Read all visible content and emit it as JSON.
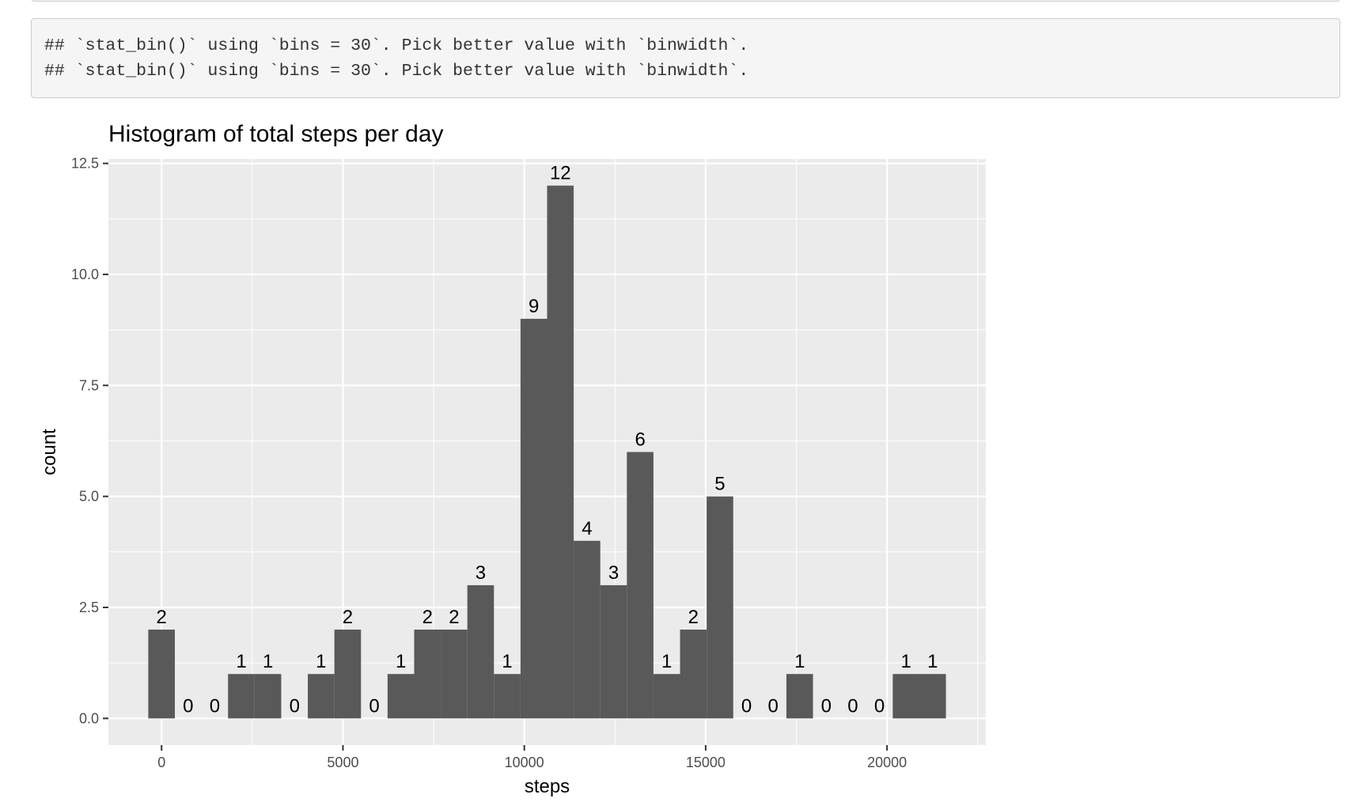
{
  "console": {
    "lines": [
      "## `stat_bin()` using `bins = 30`. Pick better value with `binwidth`.",
      "## `stat_bin()` using `bins = 30`. Pick better value with `binwidth`."
    ]
  },
  "colors": {
    "bar_fill": "#595959",
    "panel_bg": "#ebebeb",
    "grid": "#ffffff",
    "text": "#000000",
    "axis_text": "#4d4d4d"
  },
  "chart_data": {
    "type": "bar",
    "title": "Histogram of total steps per day",
    "xlabel": "steps",
    "ylabel": "count",
    "bin_centers": [
      0,
      733,
      1466,
      2199,
      2932,
      3665,
      4398,
      5131,
      5864,
      6597,
      7330,
      8063,
      8796,
      9529,
      10262,
      10995,
      11728,
      12461,
      13194,
      13927,
      14660,
      15393,
      16126,
      16859,
      17592,
      18325,
      19058,
      19791,
      20524,
      21257
    ],
    "values": [
      2,
      0,
      0,
      1,
      1,
      0,
      1,
      2,
      0,
      1,
      2,
      2,
      3,
      1,
      9,
      12,
      4,
      3,
      6,
      1,
      2,
      5,
      0,
      0,
      1,
      0,
      0,
      0,
      1,
      1
    ],
    "x_ticks": [
      0,
      5000,
      10000,
      15000,
      20000
    ],
    "x_tick_labels": [
      "0",
      "5000",
      "10000",
      "15000",
      "20000"
    ],
    "y_ticks": [
      0,
      2.5,
      5,
      7.5,
      10,
      12.5
    ],
    "y_tick_labels": [
      "0.0",
      "2.5",
      "5.0",
      "7.5",
      "10.0",
      "12.5"
    ],
    "xlim": [
      -1466,
      22723
    ],
    "ylim": [
      -0.6,
      12.6
    ],
    "grid": true,
    "legend": "none"
  }
}
